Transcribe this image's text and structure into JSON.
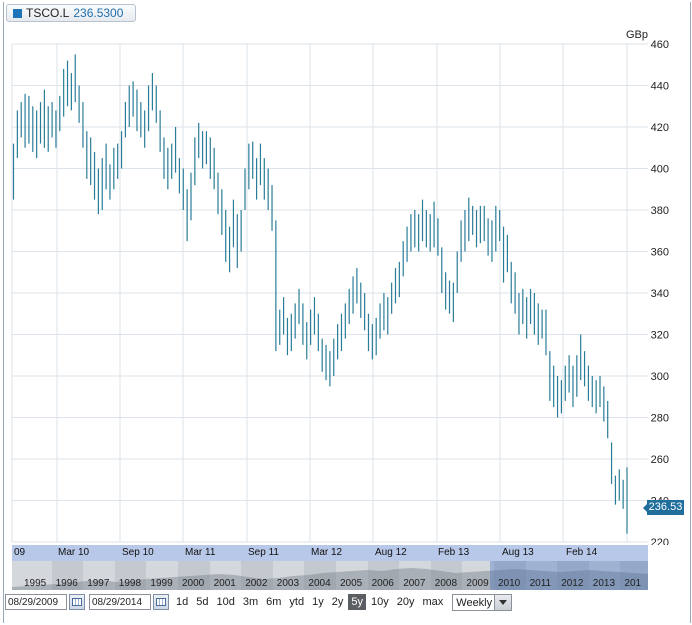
{
  "header": {
    "symbol": "TSCO.L",
    "price": "236.5300"
  },
  "chart_data": {
    "type": "ohlc",
    "unit_label": "GBp",
    "ylim": [
      220,
      460
    ],
    "yticks": [
      220,
      240,
      260,
      280,
      300,
      320,
      340,
      360,
      380,
      400,
      420,
      440,
      460
    ],
    "xticks": [
      "09",
      "Mar 10",
      "Sep 10",
      "Mar 11",
      "Sep 11",
      "Mar 12",
      "Aug 12",
      "Feb 13",
      "Aug 13",
      "Feb 14"
    ],
    "last_value_label": "236.53",
    "grid": true,
    "series_color": "#2a7d98",
    "weekly_ranges": [
      [
        385,
        412
      ],
      [
        405,
        428
      ],
      [
        415,
        432
      ],
      [
        410,
        436
      ],
      [
        412,
        435
      ],
      [
        408,
        430
      ],
      [
        405,
        428
      ],
      [
        412,
        432
      ],
      [
        410,
        438
      ],
      [
        408,
        430
      ],
      [
        415,
        432
      ],
      [
        410,
        428
      ],
      [
        418,
        435
      ],
      [
        425,
        448
      ],
      [
        430,
        452
      ],
      [
        428,
        446
      ],
      [
        432,
        455
      ],
      [
        422,
        440
      ],
      [
        410,
        432
      ],
      [
        395,
        418
      ],
      [
        392,
        415
      ],
      [
        385,
        408
      ],
      [
        378,
        400
      ],
      [
        380,
        405
      ],
      [
        390,
        412
      ],
      [
        385,
        402
      ],
      [
        390,
        410
      ],
      [
        395,
        412
      ],
      [
        400,
        418
      ],
      [
        415,
        432
      ],
      [
        420,
        440
      ],
      [
        425,
        442
      ],
      [
        418,
        438
      ],
      [
        415,
        432
      ],
      [
        410,
        428
      ],
      [
        418,
        440
      ],
      [
        428,
        446
      ],
      [
        422,
        440
      ],
      [
        408,
        428
      ],
      [
        395,
        415
      ],
      [
        390,
        410
      ],
      [
        395,
        412
      ],
      [
        398,
        420
      ],
      [
        388,
        405
      ],
      [
        380,
        400
      ],
      [
        365,
        390
      ],
      [
        375,
        398
      ],
      [
        392,
        415
      ],
      [
        405,
        422
      ],
      [
        400,
        418
      ],
      [
        402,
        418
      ],
      [
        395,
        415
      ],
      [
        390,
        410
      ],
      [
        378,
        398
      ],
      [
        368,
        390
      ],
      [
        355,
        380
      ],
      [
        350,
        372
      ],
      [
        362,
        385
      ],
      [
        352,
        378
      ],
      [
        360,
        380
      ],
      [
        380,
        400
      ],
      [
        390,
        412
      ],
      [
        395,
        413
      ],
      [
        385,
        405
      ],
      [
        392,
        412
      ],
      [
        385,
        405
      ],
      [
        380,
        400
      ],
      [
        370,
        392
      ],
      [
        312,
        375
      ],
      [
        315,
        332
      ],
      [
        320,
        338
      ],
      [
        310,
        328
      ],
      [
        312,
        330
      ],
      [
        318,
        335
      ],
      [
        325,
        342
      ],
      [
        315,
        335
      ],
      [
        308,
        326
      ],
      [
        315,
        332
      ],
      [
        320,
        338
      ],
      [
        312,
        330
      ],
      [
        302,
        318
      ],
      [
        298,
        315
      ],
      [
        295,
        312
      ],
      [
        300,
        318
      ],
      [
        308,
        325
      ],
      [
        312,
        330
      ],
      [
        318,
        335
      ],
      [
        325,
        342
      ],
      [
        330,
        348
      ],
      [
        335,
        352
      ],
      [
        328,
        345
      ],
      [
        322,
        340
      ],
      [
        312,
        330
      ],
      [
        308,
        325
      ],
      [
        310,
        328
      ],
      [
        318,
        335
      ],
      [
        322,
        340
      ],
      [
        320,
        338
      ],
      [
        330,
        345
      ],
      [
        335,
        352
      ],
      [
        338,
        355
      ],
      [
        348,
        365
      ],
      [
        355,
        372
      ],
      [
        360,
        378
      ],
      [
        362,
        380
      ],
      [
        360,
        378
      ],
      [
        365,
        385
      ],
      [
        362,
        380
      ],
      [
        360,
        378
      ],
      [
        362,
        384
      ],
      [
        358,
        376
      ],
      [
        340,
        362
      ],
      [
        332,
        350
      ],
      [
        330,
        346
      ],
      [
        326,
        345
      ],
      [
        340,
        360
      ],
      [
        355,
        375
      ],
      [
        360,
        380
      ],
      [
        365,
        386
      ],
      [
        368,
        382
      ],
      [
        362,
        380
      ],
      [
        364,
        382
      ],
      [
        365,
        382
      ],
      [
        358,
        376
      ],
      [
        355,
        375
      ],
      [
        360,
        382
      ],
      [
        365,
        380
      ],
      [
        345,
        372
      ],
      [
        350,
        368
      ],
      [
        335,
        355
      ],
      [
        330,
        350
      ],
      [
        320,
        340
      ],
      [
        325,
        342
      ],
      [
        318,
        338
      ],
      [
        325,
        342
      ],
      [
        320,
        340
      ],
      [
        315,
        335
      ],
      [
        318,
        332
      ],
      [
        310,
        332
      ],
      [
        288,
        312
      ],
      [
        285,
        305
      ],
      [
        280,
        300
      ],
      [
        282,
        298
      ],
      [
        288,
        305
      ],
      [
        292,
        310
      ],
      [
        285,
        305
      ],
      [
        290,
        310
      ],
      [
        298,
        320
      ],
      [
        295,
        312
      ],
      [
        288,
        305
      ],
      [
        285,
        300
      ],
      [
        282,
        298
      ],
      [
        285,
        300
      ],
      [
        278,
        295
      ],
      [
        270,
        288
      ],
      [
        248,
        268
      ],
      [
        238,
        252
      ],
      [
        240,
        255
      ],
      [
        236,
        250
      ],
      [
        224,
        256
      ]
    ]
  },
  "navigator": {
    "years": [
      "1995",
      "1996",
      "1997",
      "1998",
      "1999",
      "2000",
      "2001",
      "2002",
      "2003",
      "2004",
      "2005",
      "2006",
      "2007",
      "2008",
      "2009",
      "2010",
      "2011",
      "2012",
      "2013",
      "201"
    ]
  },
  "controls": {
    "start_date": "08/29/2009",
    "end_date": "08/29/2014",
    "ranges": [
      "1d",
      "5d",
      "10d",
      "3m",
      "6m",
      "ytd",
      "1y",
      "2y",
      "5y",
      "10y",
      "20y",
      "max"
    ],
    "active_range": "5y",
    "interval": "Weekly"
  }
}
